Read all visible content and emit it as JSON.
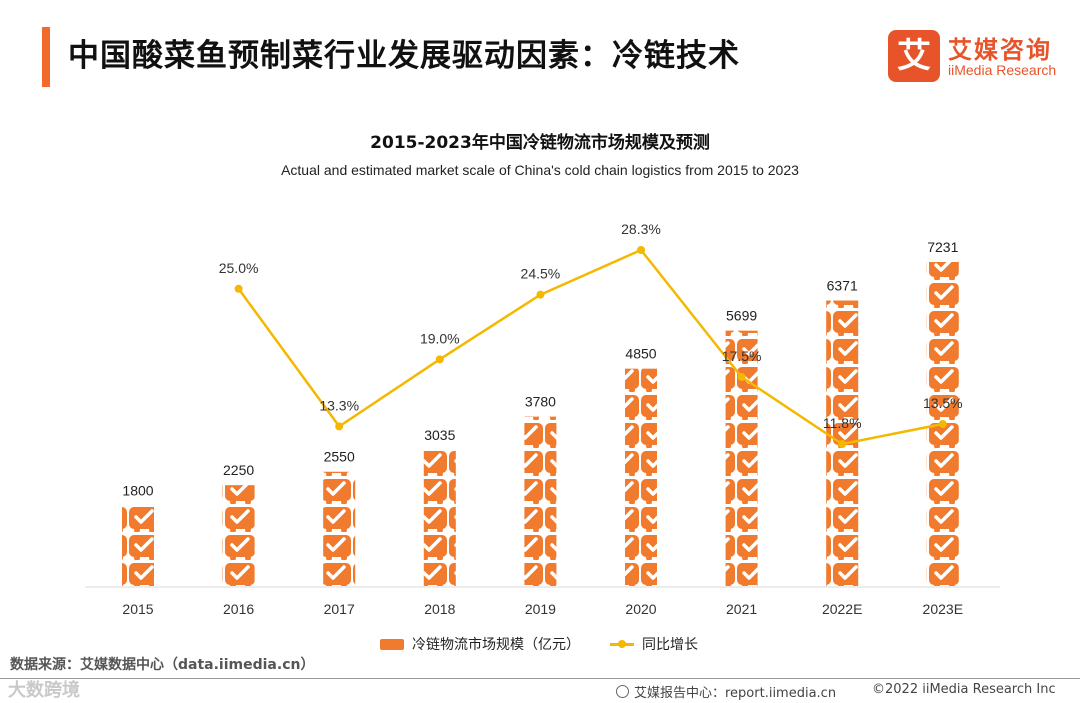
{
  "header": {
    "title": "中国酸菜鱼预制菜行业发展驱动因素：冷链技术",
    "logo_mark": "艾",
    "logo_cn": "艾媒咨询",
    "logo_en": "iiMedia Research"
  },
  "colors": {
    "accent": "#f26a2a",
    "bar": "#f07a2d",
    "line": "#f5b800"
  },
  "chart_data": {
    "type": "bar+line",
    "title": "2015-2023年中国冷链物流市场规模及预测",
    "subtitle": "Actual and estimated market scale of China's cold chain logistics from 2015 to 2023",
    "categories": [
      "2015",
      "2016",
      "2017",
      "2018",
      "2019",
      "2020",
      "2021",
      "2022E",
      "2023E"
    ],
    "series": [
      {
        "name": "冷链物流市场规模（亿元）",
        "type": "bar",
        "values": [
          1800,
          2250,
          2550,
          3035,
          3780,
          4850,
          5699,
          6371,
          7231
        ]
      },
      {
        "name": "同比增长",
        "type": "line",
        "values": [
          null,
          25.0,
          13.3,
          19.0,
          24.5,
          28.3,
          17.5,
          11.8,
          13.5
        ],
        "labels": [
          "",
          "25.0%",
          "13.3%",
          "19.0%",
          "24.5%",
          "28.3%",
          "17.5%",
          "11.8%",
          "13.5%"
        ]
      }
    ],
    "bar_ylim": [
      0,
      8000
    ],
    "line_ylim": [
      0,
      36
    ],
    "legend": "bottom"
  },
  "legend": {
    "bar_label": "冷链物流市场规模（亿元）",
    "line_label": "同比增长"
  },
  "source": "数据来源：艾媒数据中心（data.iimedia.cn）",
  "footer": {
    "watermark": "大数跨境",
    "report": "艾媒报告中心：report.iimedia.cn",
    "copyright": "©2022 iiMedia Research Inc"
  }
}
